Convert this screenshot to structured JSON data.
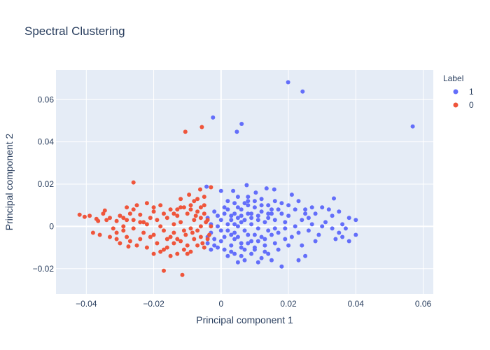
{
  "chart_data": {
    "type": "scatter",
    "title": "Spectral Clustering",
    "xlabel": "Principal component 1",
    "ylabel": "Principal component 2",
    "xlim": [
      -0.049,
      0.063
    ],
    "ylim": [
      -0.032,
      0.074
    ],
    "x_ticks": [
      -0.04,
      -0.02,
      0,
      0.02,
      0.04,
      0.06
    ],
    "x_tick_labels": [
      "−0.04",
      "−0.02",
      "0",
      "0.02",
      "0.04",
      "0.06"
    ],
    "y_ticks": [
      -0.02,
      0,
      0.02,
      0.04,
      0.06
    ],
    "y_tick_labels": [
      "−0.02",
      "0",
      "0.02",
      "0.04",
      "0.06"
    ],
    "grid": true,
    "legend_position": "top-right",
    "legend_title": "Label",
    "series": [
      {
        "name": "1",
        "color": "#636efa",
        "points": [
          [
            0.0199,
            0.0682
          ],
          [
            0.0242,
            0.0638
          ],
          [
            0.0569,
            0.0473
          ],
          [
            -0.0024,
            0.0515
          ],
          [
            0.0061,
            0.0485
          ],
          [
            0.0047,
            0.0448
          ],
          [
            0.0135,
            0.018
          ],
          [
            0.0076,
            0.0195
          ],
          [
            0.0158,
            0.0175
          ],
          [
            0.0335,
            0.0132
          ],
          [
            0.021,
            0.015
          ],
          [
            -0.0043,
            0.0188
          ],
          [
            0.0,
            0.0168
          ],
          [
            0.0036,
            0.0168
          ],
          [
            0.0103,
            0.016
          ],
          [
            0.005,
            0.014
          ],
          [
            0.012,
            0.013
          ],
          [
            0.008,
            0.012
          ],
          [
            0.03,
            0.009
          ],
          [
            0.025,
            0.008
          ],
          [
            0.002,
            0.012
          ],
          [
            0.009,
            0.006
          ],
          [
            0.015,
            0.006
          ],
          [
            0.02,
            0.005
          ],
          [
            0.028,
            0.006
          ],
          [
            0.035,
            0.007
          ],
          [
            0.038,
            0.004
          ],
          [
            0.04,
            0.003
          ],
          [
            0.037,
            -0.001
          ],
          [
            0.033,
            -0.001
          ],
          [
            0.031,
            0.002
          ],
          [
            0.027,
            0.001
          ],
          [
            0.024,
            0.003
          ],
          [
            0.022,
            0.0
          ],
          [
            0.019,
            -0.001
          ],
          [
            0.017,
            -0.003
          ],
          [
            0.014,
            -0.002
          ],
          [
            0.011,
            -0.001
          ],
          [
            0.007,
            -0.002
          ],
          [
            0.004,
            -0.003
          ],
          [
            0.001,
            -0.005
          ],
          [
            -0.002,
            -0.006
          ],
          [
            -0.004,
            -0.008
          ],
          [
            -0.003,
            -0.011
          ],
          [
            -0.001,
            -0.01
          ],
          [
            0.003,
            -0.012
          ],
          [
            0.006,
            -0.01
          ],
          [
            0.009,
            -0.013
          ],
          [
            0.012,
            -0.015
          ],
          [
            0.015,
            -0.016
          ],
          [
            0.018,
            -0.019
          ],
          [
            0.023,
            -0.016
          ],
          [
            0.025,
            -0.014
          ],
          [
            0.035,
            -0.003
          ],
          [
            0.034,
            -0.006
          ],
          [
            0.029,
            -0.004
          ],
          [
            0.026,
            -0.002
          ],
          [
            0.021,
            -0.005
          ],
          [
            0.016,
            -0.008
          ],
          [
            0.013,
            -0.006
          ],
          [
            0.01,
            -0.004
          ],
          [
            0.005,
            -0.005
          ],
          [
            0.002,
            -0.002
          ],
          [
            -0.001,
            0.0
          ],
          [
            0.0,
            0.003
          ],
          [
            0.003,
            0.005
          ],
          [
            0.006,
            0.008
          ],
          [
            0.01,
            0.009
          ],
          [
            0.014,
            0.01
          ],
          [
            0.017,
            0.008
          ],
          [
            0.023,
            0.012
          ],
          [
            0.027,
            0.009
          ],
          [
            0.032,
            0.008
          ],
          [
            0.006,
            0.002
          ],
          [
            0.008,
            -0.008
          ],
          [
            0.004,
            -0.013
          ],
          [
            0.007,
            -0.016
          ],
          [
            0.011,
            -0.017
          ],
          [
            0.003,
            -0.009
          ],
          [
            0.0,
            -0.007
          ],
          [
            -0.003,
            -0.003
          ],
          [
            -0.004,
            0.004
          ],
          [
            -0.002,
            0.007
          ],
          [
            0.001,
            0.009
          ],
          [
            0.004,
            0.011
          ],
          [
            0.013,
            0.002
          ],
          [
            0.016,
            0.003
          ],
          [
            0.019,
            0.002
          ],
          [
            0.02,
            -0.009
          ],
          [
            0.017,
            -0.011
          ],
          [
            0.013,
            -0.012
          ],
          [
            0.01,
            -0.01
          ],
          [
            0.008,
            -0.004
          ],
          [
            0.005,
            0.0
          ],
          [
            0.002,
            0.001
          ],
          [
            0.006,
            0.005
          ],
          [
            0.011,
            0.005
          ],
          [
            0.015,
            0.008
          ],
          [
            0.038,
            -0.007
          ],
          [
            0.04,
            -0.004
          ],
          [
            0.036,
            0.001
          ],
          [
            0.028,
            -0.007
          ],
          [
            0.024,
            -0.009
          ],
          [
            0.008,
            0.01
          ],
          [
            0.001,
            -0.011
          ],
          [
            -0.001,
            0.005
          ],
          [
            0.007,
            0.003
          ],
          [
            0.012,
            -0.005
          ],
          [
            0.018,
            0.006
          ],
          [
            0.022,
            0.008
          ],
          [
            0.009,
            -0.007
          ],
          [
            0.004,
            0.006
          ],
          [
            -0.003,
            0.001
          ],
          [
            0.014,
            -0.013
          ],
          [
            0.026,
            0.004
          ],
          [
            0.03,
            0.0
          ],
          [
            0.002,
            -0.014
          ],
          [
            0.005,
            -0.017
          ],
          [
            0.01,
            0.012
          ],
          [
            0.016,
            0.012
          ],
          [
            -0.004,
            -0.005
          ],
          [
            0.003,
            0.003
          ],
          [
            0.009,
            0.001
          ],
          [
            0.012,
            0.007
          ],
          [
            0.02,
            0.01
          ],
          [
            0.023,
            -0.003
          ],
          [
            0.033,
            0.005
          ],
          [
            0.036,
            -0.005
          ],
          [
            0.001,
            0.006
          ],
          [
            -0.002,
            -0.009
          ],
          [
            0.006,
            -0.014
          ],
          [
            0.011,
            0.003
          ],
          [
            0.008,
            0.006
          ],
          [
            0.014,
            0.004
          ],
          [
            0.004,
            -0.006
          ],
          [
            0.007,
            -0.011
          ],
          [
            0.005,
            0.009
          ],
          [
            0.019,
            -0.006
          ],
          [
            0.015,
            -0.004
          ],
          [
            0.025,
            0.006
          ],
          [
            0.013,
            -0.009
          ],
          [
            0.002,
            0.008
          ],
          [
            0.009,
            0.004
          ],
          [
            0.007,
            0.011
          ],
          [
            0.011,
            -0.007
          ],
          [
            0.003,
            -0.004
          ],
          [
            0.0,
            -0.002
          ],
          [
            0.012,
            0.01
          ],
          [
            0.016,
            -0.001
          ],
          [
            0.006,
            -0.008
          ],
          [
            0.004,
            0.001
          ],
          [
            0.01,
            -0.011
          ],
          [
            0.008,
            0.014
          ],
          [
            0.018,
            0.011
          ],
          [
            0.005,
            0.004
          ],
          [
            0.014,
            0.006
          ]
        ]
      },
      {
        "name": "0",
        "color": "#ef553b",
        "points": [
          [
            -0.0106,
            0.0448
          ],
          [
            -0.0057,
            0.047
          ],
          [
            -0.026,
            0.0208
          ],
          [
            -0.003,
            0.0185
          ],
          [
            -0.0062,
            0.0175
          ],
          [
            -0.007,
            0.013
          ],
          [
            -0.005,
            0.014
          ],
          [
            -0.008,
            0.012
          ],
          [
            -0.012,
            0.013
          ],
          [
            -0.015,
            0.008
          ],
          [
            -0.018,
            0.01
          ],
          [
            -0.022,
            0.011
          ],
          [
            -0.025,
            0.01
          ],
          [
            -0.028,
            0.009
          ],
          [
            -0.035,
            0.006
          ],
          [
            -0.039,
            0.005
          ],
          [
            -0.042,
            0.0055
          ],
          [
            -0.0405,
            0.0045
          ],
          [
            -0.037,
            0.0035
          ],
          [
            -0.034,
            0.003
          ],
          [
            -0.031,
            0.0025
          ],
          [
            -0.029,
            0.004
          ],
          [
            -0.027,
            0.006
          ],
          [
            -0.024,
            0.0055
          ],
          [
            -0.021,
            0.004
          ],
          [
            -0.019,
            0.003
          ],
          [
            -0.016,
            0.004
          ],
          [
            -0.013,
            0.005
          ],
          [
            -0.01,
            0.006
          ],
          [
            -0.007,
            0.007
          ],
          [
            -0.005,
            0.006
          ],
          [
            -0.004,
            0.003
          ],
          [
            -0.006,
            0.0
          ],
          [
            -0.009,
            -0.001
          ],
          [
            -0.011,
            -0.002
          ],
          [
            -0.014,
            -0.003
          ],
          [
            -0.017,
            -0.002
          ],
          [
            -0.02,
            -0.004
          ],
          [
            -0.023,
            -0.003
          ],
          [
            -0.026,
            -0.001
          ],
          [
            -0.029,
            -0.002
          ],
          [
            -0.032,
            -0.001
          ],
          [
            -0.036,
            -0.004
          ],
          [
            -0.038,
            -0.003
          ],
          [
            -0.033,
            -0.005
          ],
          [
            -0.03,
            -0.008
          ],
          [
            -0.027,
            -0.007
          ],
          [
            -0.025,
            -0.009
          ],
          [
            -0.022,
            -0.01
          ],
          [
            -0.02,
            -0.013
          ],
          [
            -0.018,
            -0.012
          ],
          [
            -0.016,
            -0.01
          ],
          [
            -0.014,
            -0.008
          ],
          [
            -0.012,
            -0.007
          ],
          [
            -0.01,
            -0.009
          ],
          [
            -0.008,
            -0.006
          ],
          [
            -0.006,
            -0.005
          ],
          [
            -0.004,
            -0.006
          ],
          [
            -0.003,
            0.0
          ],
          [
            -0.005,
            0.01
          ],
          [
            -0.009,
            0.01
          ],
          [
            -0.013,
            0.008
          ],
          [
            -0.017,
            0.006
          ],
          [
            -0.02,
            0.007
          ],
          [
            -0.023,
            0.002
          ],
          [
            -0.026,
            0.003
          ],
          [
            -0.029,
            0.0
          ],
          [
            -0.031,
            -0.003
          ],
          [
            -0.028,
            -0.005
          ],
          [
            -0.024,
            -0.006
          ],
          [
            -0.021,
            -0.005
          ],
          [
            -0.019,
            -0.008
          ],
          [
            -0.017,
            -0.011
          ],
          [
            -0.015,
            -0.014
          ],
          [
            -0.013,
            -0.013
          ],
          [
            -0.011,
            -0.011
          ],
          [
            -0.009,
            -0.012
          ],
          [
            -0.007,
            -0.009
          ],
          [
            -0.017,
            -0.021
          ],
          [
            -0.0115,
            -0.023
          ],
          [
            -0.0095,
            0.015
          ],
          [
            -0.011,
            0.009
          ],
          [
            -0.008,
            0.003
          ],
          [
            -0.006,
            0.004
          ],
          [
            -0.012,
            0.002
          ],
          [
            -0.014,
            0.001
          ],
          [
            -0.015,
            -0.005
          ],
          [
            -0.013,
            -0.006
          ],
          [
            -0.0105,
            -0.004
          ],
          [
            -0.0085,
            -0.003
          ],
          [
            -0.022,
            0.001
          ],
          [
            -0.024,
            0.002
          ],
          [
            -0.03,
            0.005
          ],
          [
            -0.033,
            0.004
          ],
          [
            -0.028,
            0.003
          ],
          [
            -0.026,
            0.008
          ],
          [
            -0.009,
            0.008
          ],
          [
            -0.007,
            -0.002
          ],
          [
            -0.005,
            -0.01
          ],
          [
            -0.01,
            -0.013
          ],
          [
            -0.031,
            -0.006
          ],
          [
            -0.0275,
            -0.0095
          ],
          [
            -0.0345,
            0.0075
          ],
          [
            -0.0365,
            0.0025
          ],
          [
            -0.006,
            0.009
          ],
          [
            -0.014,
            0.006
          ],
          [
            -0.018,
            0.0
          ],
          [
            -0.016,
            -0.006
          ],
          [
            -0.012,
            0.009
          ],
          [
            -0.0045,
            0.002
          ],
          [
            -0.0075,
            0.005
          ],
          [
            -0.0055,
            -0.008
          ],
          [
            -0.0035,
            -0.004
          ],
          [
            -0.02,
            0.009
          ]
        ]
      }
    ]
  }
}
